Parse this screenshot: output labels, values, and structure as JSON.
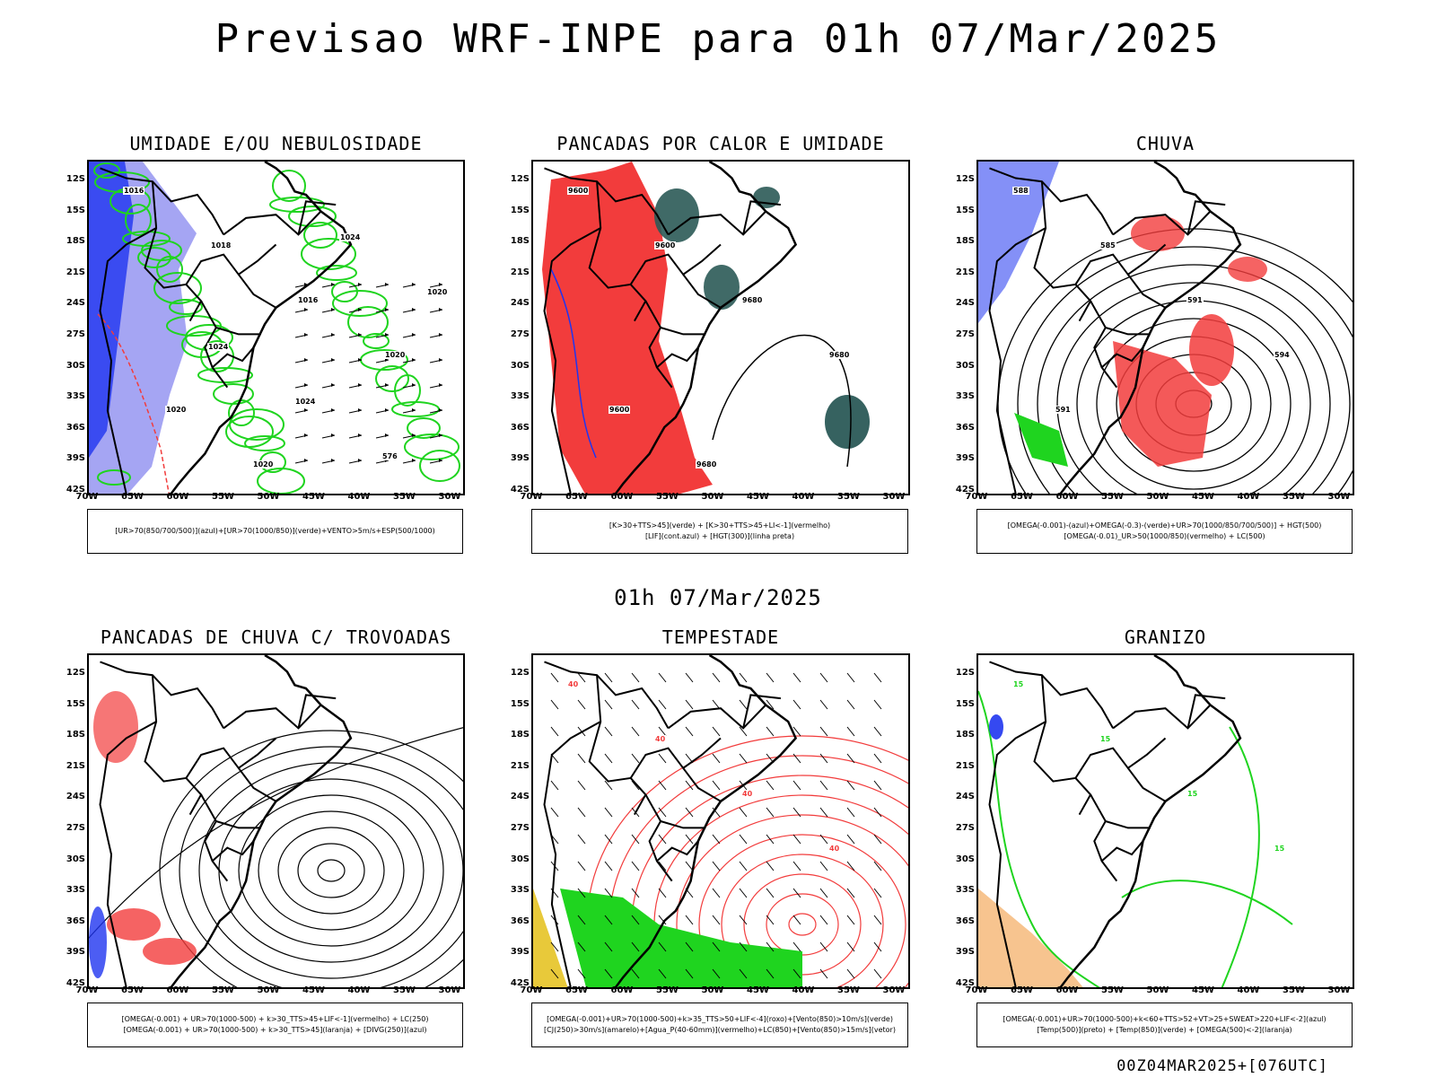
{
  "header": {
    "title": "Previsao WRF-INPE  para 01h 07/Mar/2025"
  },
  "mid_time": "01h 07/Mar/2025",
  "footer": "00Z04MAR2025+[076UTC]",
  "axes": {
    "lat_labels": [
      "12S",
      "15S",
      "18S",
      "21S",
      "24S",
      "27S",
      "30S",
      "33S",
      "36S",
      "39S",
      "42S"
    ],
    "lon_labels": [
      "70W",
      "65W",
      "60W",
      "55W",
      "50W",
      "45W",
      "40W",
      "35W",
      "30W"
    ]
  },
  "panels": [
    {
      "title": "UMIDADE E/OU NEBULOSIDADE",
      "legend": [
        "[UR>70(850/700/500)](azul)+[UR>70(1000/850)](verde)+VENTO>5m/s+ESP(500/1000)"
      ],
      "contour_labels": [
        "1016",
        "1018",
        "1016",
        "1020",
        "1020",
        "1020",
        "1024",
        "1020",
        "1024",
        "1024",
        "576"
      ]
    },
    {
      "title": "PANCADAS POR CALOR E UMIDADE",
      "legend": [
        "[K>30+TTS>45](verde) + [K>30+TTS>45+LI<-1](vermelho)",
        "[LIF](cont.azul) + [HGT(300)](linha preta)"
      ],
      "contour_labels": [
        "9600",
        "9600",
        "9680",
        "9680",
        "9600",
        "9680"
      ]
    },
    {
      "title": "CHUVA",
      "legend": [
        "[OMEGA(-0.001)-(azul)+OMEGA(-0.3)-(verde)+UR>70(1000/850/700/500)] + HGT(500)",
        "[OMEGA(-0.01)_UR>50(1000/850)(vermelho) + LC(500)"
      ],
      "contour_labels": [
        "588",
        "585",
        "591",
        "594",
        "591"
      ]
    },
    {
      "title": "PANCADAS DE CHUVA C/ TROVOADAS",
      "legend": [
        "[OMEGA(-0.001) + UR>70(1000-500) + k>30_TTS>45+LIF<-1](vermelho) + LC(250)",
        "[OMEGA(-0.001) + UR>70(1000-500) + k>30_TTS>45](laranja) + [DIVG(250)](azul)"
      ],
      "contour_labels": []
    },
    {
      "title": "TEMPESTADE",
      "legend": [
        "[OMEGA(-0.001)+UR>70(1000-500)+k>35_TTS>50+LIF<-4](roxo)+[Vento(850)>10m/s](verde)",
        "[CJ(250)>30m/s](amarelo)+[Agua_P(40-60mm)](vermelho)+LC(850)+[Vento(850)>15m/s](vetor)"
      ],
      "contour_labels": [
        "40",
        "40",
        "40",
        "40"
      ]
    },
    {
      "title": "GRANIZO",
      "legend": [
        "[OMEGA(-0.001)+UR>70(1000-500)+k<60+TTS>52+VT>25+SWEAT>220+LIF<-2](azul)",
        "[Temp(500)](preto) + [Temp(850)](verde) + [OMEGA(500)<-2](laranja)"
      ],
      "contour_labels": [
        "15",
        "15",
        "15",
        "15"
      ]
    }
  ],
  "colors": {
    "red": "#f23c3c",
    "green": "#1fd41f",
    "blue": "#1f35f0",
    "lightblue": "#8f8ff0",
    "darkteal": "#2b5a57",
    "yellow": "#e8c93a",
    "orange": "#f08a1f"
  }
}
